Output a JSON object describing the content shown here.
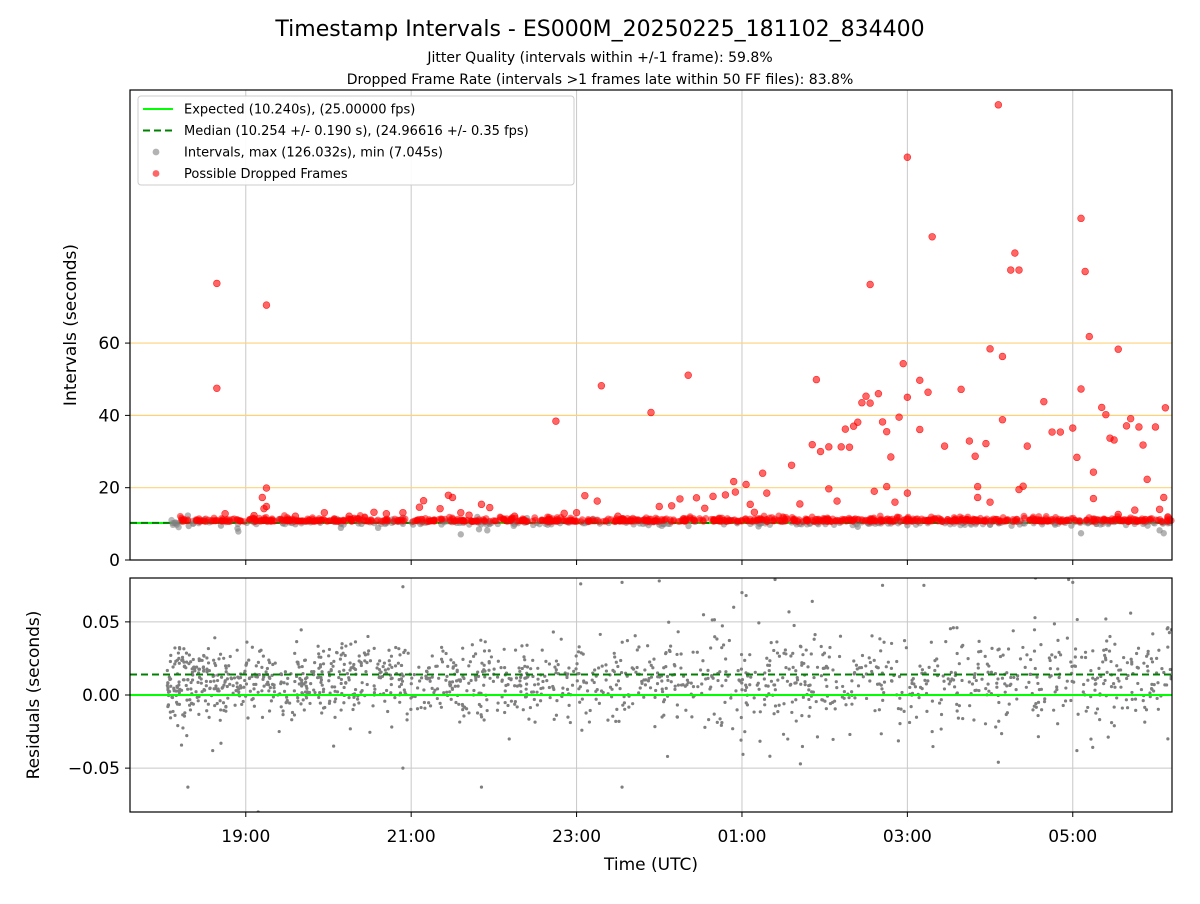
{
  "chart_data": [
    {
      "type": "scatter",
      "title": "Timestamp Intervals - ES000M_20250225_181102_834400",
      "subtitle_lines": [
        "Jitter Quality (intervals within +/-1 frame): 59.8%",
        "Dropped Frame Rate (intervals >1 frames late within 50 FF files): 83.8%"
      ],
      "xlabel": "",
      "ylabel": "Intervals (seconds)",
      "ylim": [
        0,
        130
      ],
      "xlim_hours": [
        17.6,
        30.2
      ],
      "yticks": [
        {
          "value": 0,
          "label": "0"
        },
        {
          "value": 20,
          "label": "20"
        },
        {
          "value": 40,
          "label": "40"
        },
        {
          "value": 60,
          "label": "60"
        }
      ],
      "hlines": [
        {
          "y": 20,
          "color": "#ffd27a"
        },
        {
          "y": 40,
          "color": "#ffd27a"
        },
        {
          "y": 60,
          "color": "#ffd27a"
        }
      ],
      "legend_position": "top-left",
      "legend": [
        {
          "label": "Expected (10.240s), (25.00000 fps)",
          "style": "solid",
          "color": "#00ff00"
        },
        {
          "label": "Median (10.254 +/- 0.190 s), (24.96616 +/- 0.35 fps)",
          "style": "dashed",
          "color": "#008000"
        },
        {
          "label": "Intervals, max (126.032s), min (7.045s)",
          "style": "marker",
          "color": "#808080"
        },
        {
          "label": "Possible Dropped Frames",
          "style": "marker",
          "color": "#ff0000"
        }
      ],
      "series": [
        {
          "name": "Expected (10.240s), (25.00000 fps)",
          "kind": "hline",
          "y": 10.24,
          "color": "#00ff00"
        },
        {
          "name": "Median (10.254 +/- 0.190 s), (24.96616 +/- 0.35 fps)",
          "kind": "hline",
          "y": 10.254,
          "color": "#008000"
        },
        {
          "name": "Intervals, max (126.032s), min (7.045s)",
          "kind": "scatter",
          "color": "#808080",
          "points": [
            [
              18.15,
              10.4
            ],
            [
              18.3,
              12.3
            ],
            [
              18.31,
              9.4
            ],
            [
              18.36,
              10.8
            ],
            [
              18.5,
              11.2
            ],
            [
              18.7,
              9.5
            ],
            [
              18.9,
              8.7
            ],
            [
              18.91,
              7.9
            ],
            [
              19.05,
              11.0
            ],
            [
              19.4,
              11.3
            ],
            [
              19.6,
              9.9
            ],
            [
              19.9,
              10.3
            ],
            [
              20.1,
              11.4
            ],
            [
              20.15,
              8.9
            ],
            [
              20.4,
              10.0
            ],
            [
              20.6,
              8.9
            ],
            [
              20.9,
              11.7
            ],
            [
              21.2,
              10.5
            ],
            [
              21.4,
              10.8
            ],
            [
              21.6,
              7.1
            ],
            [
              21.8,
              11.9
            ],
            [
              21.82,
              8.5
            ],
            [
              21.92,
              8.2
            ],
            [
              22.2,
              10.9
            ],
            [
              22.4,
              11.6
            ],
            [
              22.8,
              10.2
            ],
            [
              23.2,
              11.4
            ],
            [
              23.6,
              10.3
            ],
            [
              24.0,
              9.8
            ],
            [
              24.4,
              11.2
            ],
            [
              24.8,
              10.6
            ],
            [
              25.2,
              9.3
            ],
            [
              25.6,
              10.4
            ],
            [
              26.0,
              11.1
            ],
            [
              26.4,
              9.2
            ],
            [
              26.8,
              10.1
            ],
            [
              27.0,
              9.6
            ],
            [
              27.4,
              10.8
            ],
            [
              27.8,
              11.0
            ],
            [
              28.4,
              10.2
            ],
            [
              28.8,
              10.7
            ],
            [
              29.1,
              7.4
            ],
            [
              29.5,
              10.5
            ],
            [
              30.05,
              8.2
            ],
            [
              30.1,
              7.4
            ]
          ]
        },
        {
          "name": "Possible Dropped Frames",
          "kind": "scatter",
          "color": "#ff0000",
          "points": [
            [
              18.65,
              76.5
            ],
            [
              18.65,
              47.5
            ],
            [
              19.25,
              70.5
            ],
            [
              19.25,
              19.9
            ],
            [
              19.2,
              17.3
            ],
            [
              19.22,
              14.2
            ],
            [
              19.25,
              14.8
            ],
            [
              18.75,
              12.8
            ],
            [
              19.1,
              12.3
            ],
            [
              19.6,
              12.1
            ],
            [
              19.95,
              13.1
            ],
            [
              20.25,
              12.1
            ],
            [
              20.55,
              13.2
            ],
            [
              20.7,
              12.8
            ],
            [
              20.9,
              13.1
            ],
            [
              21.1,
              14.6
            ],
            [
              21.15,
              16.4
            ],
            [
              21.35,
              14.2
            ],
            [
              21.45,
              17.9
            ],
            [
              21.5,
              17.3
            ],
            [
              21.6,
              13.1
            ],
            [
              21.7,
              12.4
            ],
            [
              21.85,
              15.4
            ],
            [
              21.95,
              14.5
            ],
            [
              22.25,
              12.1
            ],
            [
              22.75,
              38.4
            ],
            [
              22.85,
              12.9
            ],
            [
              23.0,
              13.1
            ],
            [
              23.1,
              17.8
            ],
            [
              23.25,
              16.3
            ],
            [
              23.3,
              48.2
            ],
            [
              23.5,
              12.1
            ],
            [
              23.9,
              40.8
            ],
            [
              24.0,
              14.8
            ],
            [
              24.15,
              15.0
            ],
            [
              24.25,
              16.9
            ],
            [
              24.35,
              51.1
            ],
            [
              24.45,
              17.2
            ],
            [
              24.55,
              14.3
            ],
            [
              24.65,
              17.6
            ],
            [
              24.8,
              18.0
            ],
            [
              24.9,
              21.7
            ],
            [
              24.92,
              18.8
            ],
            [
              25.05,
              20.9
            ],
            [
              25.1,
              15.4
            ],
            [
              25.15,
              13.2
            ],
            [
              25.25,
              24.0
            ],
            [
              25.3,
              18.5
            ],
            [
              25.6,
              26.2
            ],
            [
              25.7,
              15.5
            ],
            [
              25.85,
              31.9
            ],
            [
              25.9,
              49.9
            ],
            [
              25.95,
              30.0
            ],
            [
              26.05,
              31.3
            ],
            [
              26.05,
              19.7
            ],
            [
              26.15,
              16.3
            ],
            [
              26.2,
              31.3
            ],
            [
              26.25,
              36.2
            ],
            [
              26.3,
              31.2
            ],
            [
              26.35,
              37.0
            ],
            [
              26.4,
              38.1
            ],
            [
              26.45,
              43.5
            ],
            [
              26.5,
              45.3
            ],
            [
              26.55,
              76.2
            ],
            [
              26.55,
              43.4
            ],
            [
              26.6,
              19.0
            ],
            [
              26.65,
              46.0
            ],
            [
              26.7,
              38.2
            ],
            [
              26.75,
              35.5
            ],
            [
              26.75,
              20.3
            ],
            [
              26.8,
              28.5
            ],
            [
              26.85,
              16.0
            ],
            [
              26.9,
              39.5
            ],
            [
              26.95,
              54.3
            ],
            [
              27.0,
              111.4
            ],
            [
              27.0,
              45.0
            ],
            [
              27.0,
              18.5
            ],
            [
              27.15,
              49.7
            ],
            [
              27.15,
              36.1
            ],
            [
              27.25,
              46.4
            ],
            [
              27.3,
              89.4
            ],
            [
              27.45,
              31.5
            ],
            [
              27.65,
              47.2
            ],
            [
              27.75,
              32.9
            ],
            [
              27.82,
              28.7
            ],
            [
              27.85,
              20.3
            ],
            [
              27.85,
              17.3
            ],
            [
              27.95,
              32.2
            ],
            [
              28.0,
              58.4
            ],
            [
              28.0,
              16.0
            ],
            [
              28.1,
              125.9
            ],
            [
              28.15,
              38.8
            ],
            [
              28.15,
              56.3
            ],
            [
              28.25,
              80.2
            ],
            [
              28.3,
              84.9
            ],
            [
              28.35,
              80.2
            ],
            [
              28.35,
              19.5
            ],
            [
              28.4,
              20.4
            ],
            [
              28.45,
              31.5
            ],
            [
              28.65,
              43.8
            ],
            [
              28.75,
              35.4
            ],
            [
              28.85,
              35.4
            ],
            [
              29.0,
              36.5
            ],
            [
              29.05,
              28.4
            ],
            [
              29.1,
              47.3
            ],
            [
              29.1,
              94.5
            ],
            [
              29.15,
              79.8
            ],
            [
              29.2,
              61.8
            ],
            [
              29.25,
              24.3
            ],
            [
              29.25,
              17.0
            ],
            [
              29.35,
              42.2
            ],
            [
              29.4,
              40.2
            ],
            [
              29.45,
              33.7
            ],
            [
              29.5,
              33.2
            ],
            [
              29.55,
              58.3
            ],
            [
              29.55,
              12.6
            ],
            [
              29.65,
              37.1
            ],
            [
              29.7,
              39.1
            ],
            [
              29.75,
              13.8
            ],
            [
              29.8,
              36.8
            ],
            [
              29.85,
              31.8
            ],
            [
              29.9,
              22.3
            ],
            [
              30.0,
              36.8
            ],
            [
              30.05,
              14.0
            ],
            [
              30.1,
              17.3
            ],
            [
              30.12,
              42.1
            ],
            [
              30.15,
              11.9
            ]
          ]
        }
      ]
    },
    {
      "type": "scatter",
      "xlabel": "Time (UTC)",
      "ylabel": "Residuals (seconds)",
      "ylim": [
        -0.08,
        0.08
      ],
      "xlim_hours": [
        17.6,
        30.2
      ],
      "yticks": [
        {
          "value": -0.05,
          "label": "−0.05"
        },
        {
          "value": 0.0,
          "label": "0.00"
        },
        {
          "value": 0.05,
          "label": "0.05"
        }
      ],
      "xticks": [
        {
          "value": 19,
          "label": "19:00"
        },
        {
          "value": 21,
          "label": "21:00"
        },
        {
          "value": 23,
          "label": "23:00"
        },
        {
          "value": 25,
          "label": "01:00"
        },
        {
          "value": 27,
          "label": "03:00"
        },
        {
          "value": 29,
          "label": "05:00"
        }
      ],
      "grid": true,
      "series": [
        {
          "name": "",
          "kind": "hline",
          "y": 0.0,
          "color": "#00ff00"
        },
        {
          "name": "",
          "kind": "hline",
          "y": 0.014,
          "color": "#008000"
        },
        {
          "name": "",
          "kind": "scatter",
          "color": "#7f7f7f",
          "x_range": [
            18.05,
            30.2
          ],
          "y_center": 0.009,
          "y_spread": 0.013,
          "count": 1500,
          "outliers": [
            [
              18.3,
              -0.063
            ],
            [
              18.6,
              -0.038
            ],
            [
              18.7,
              -0.033
            ],
            [
              19.15,
              -0.08
            ],
            [
              20.9,
              0.074
            ],
            [
              20.9,
              -0.05
            ],
            [
              21.85,
              -0.063
            ],
            [
              23.05,
              0.076
            ],
            [
              23.55,
              -0.063
            ],
            [
              23.55,
              0.077
            ],
            [
              24.1,
              -0.042
            ],
            [
              24.0,
              0.078
            ],
            [
              24.9,
              0.06
            ],
            [
              25.0,
              0.07
            ],
            [
              25.05,
              0.068
            ],
            [
              25.4,
              0.079
            ],
            [
              25.85,
              0.064
            ],
            [
              26.7,
              0.075
            ],
            [
              27.2,
              0.075
            ],
            [
              27.3,
              -0.025
            ],
            [
              27.6,
              0.046
            ],
            [
              28.1,
              -0.046
            ],
            [
              28.55,
              0.08
            ],
            [
              28.95,
              0.079
            ],
            [
              29.0,
              0.077
            ],
            [
              29.05,
              -0.038
            ],
            [
              29.4,
              0.052
            ],
            [
              29.45,
              0.04
            ],
            [
              29.7,
              0.056
            ],
            [
              30.15,
              -0.03
            ],
            [
              30.15,
              0.046
            ]
          ]
        }
      ]
    }
  ]
}
